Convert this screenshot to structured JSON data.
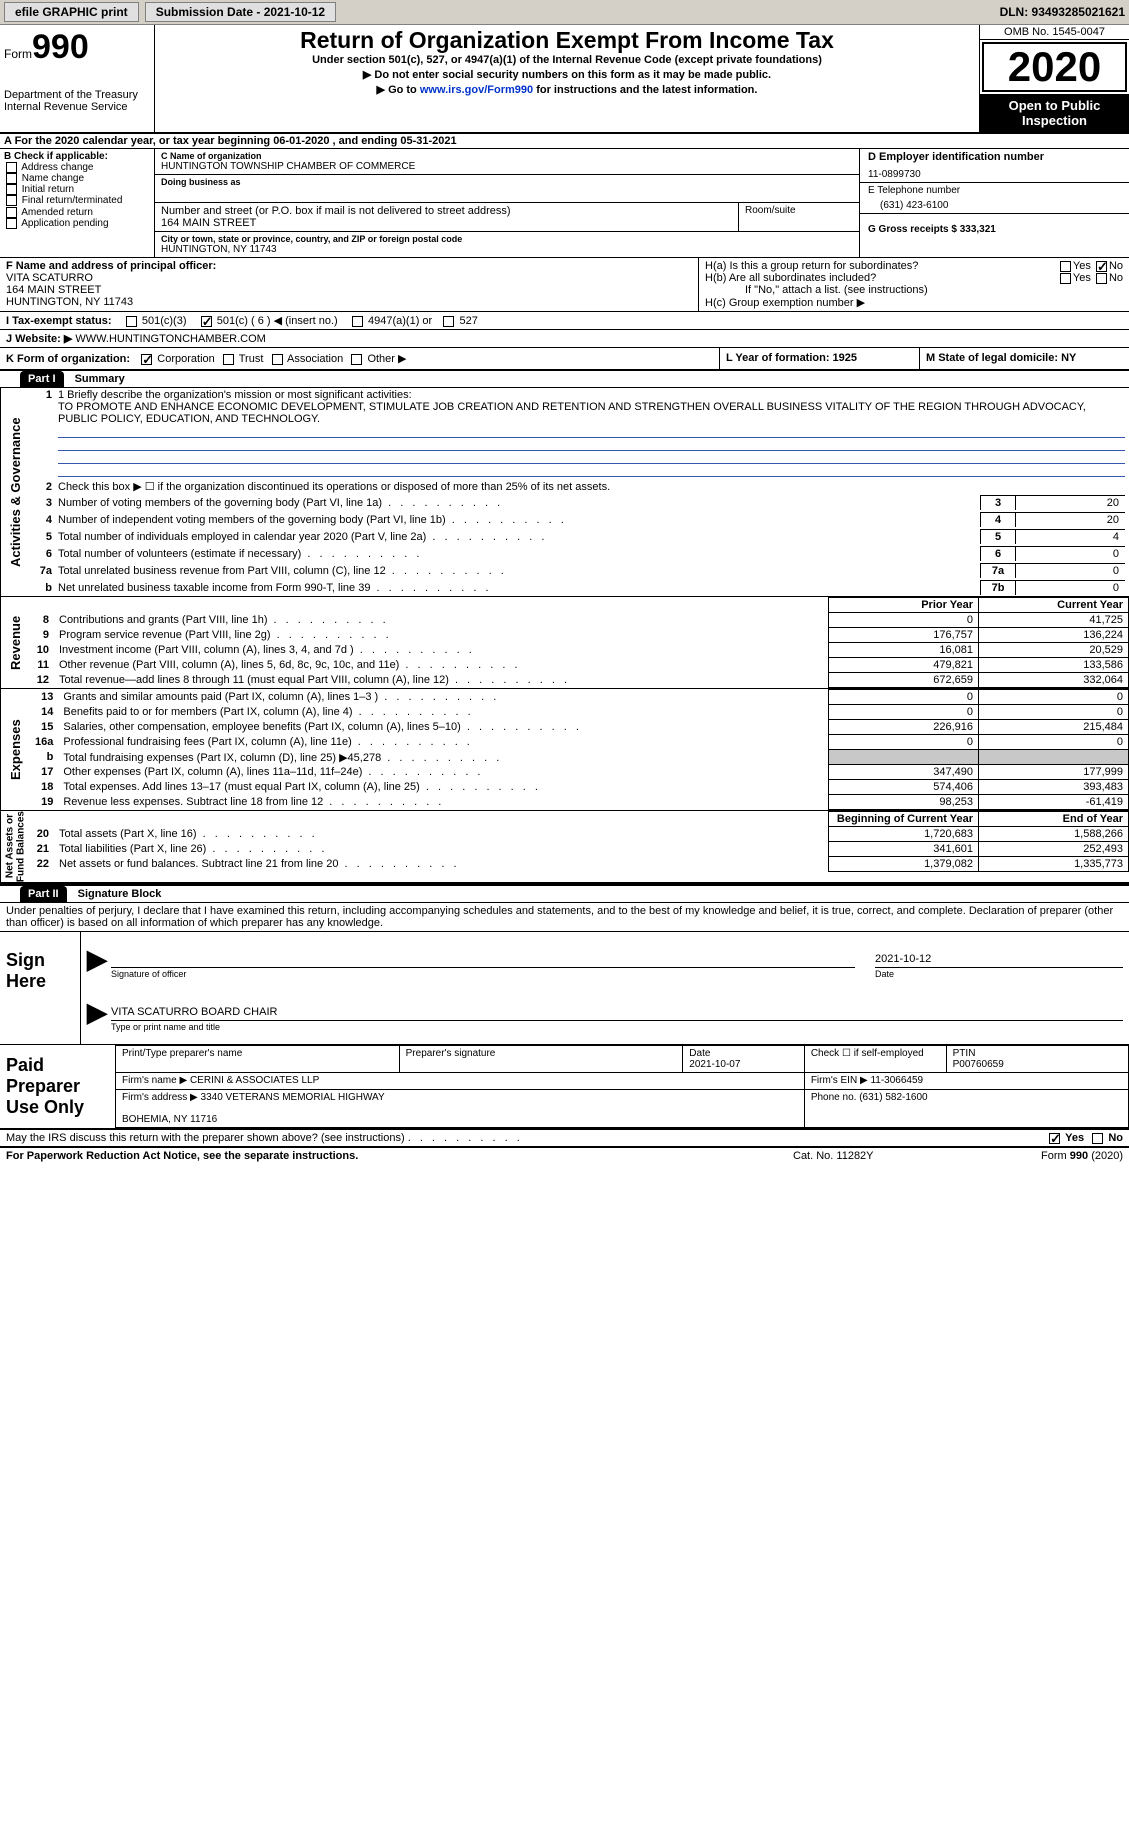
{
  "topbar": {
    "efile_label": "efile GRAPHIC print",
    "submission_label": "Submission Date - 2021-10-12",
    "dln": "DLN: 93493285021621"
  },
  "header": {
    "form_prefix": "Form",
    "form_number": "990",
    "dept": "Department of the Treasury\nInternal Revenue Service",
    "title": "Return of Organization Exempt From Income Tax",
    "subtitle": "Under section 501(c), 527, or 4947(a)(1) of the Internal Revenue Code (except private foundations)",
    "line1": "▶ Do not enter social security numbers on this form as it may be made public.",
    "line2_pre": "▶ Go to ",
    "line2_link": "www.irs.gov/Form990",
    "line2_post": " for instructions and the latest information.",
    "omb": "OMB No. 1545-0047",
    "year": "2020",
    "open_public": "Open to Public\nInspection"
  },
  "lineA": "A For the 2020 calendar year, or tax year beginning 06-01-2020   , and ending 05-31-2021",
  "boxB": {
    "title": "B Check if applicable:",
    "opts": [
      "Address change",
      "Name change",
      "Initial return",
      "Final return/terminated",
      "Amended return",
      "Application pending"
    ]
  },
  "boxC": {
    "name_lbl": "C Name of organization",
    "name": "HUNTINGTON TOWNSHIP CHAMBER OF COMMERCE",
    "dba_lbl": "Doing business as",
    "addr_lbl": "Number and street (or P.O. box if mail is not delivered to street address)",
    "room_lbl": "Room/suite",
    "addr": "164 MAIN STREET",
    "city_lbl": "City or town, state or province, country, and ZIP or foreign postal code",
    "city": "HUNTINGTON, NY  11743"
  },
  "boxD": {
    "ein_lbl": "D Employer identification number",
    "ein": "11-0899730",
    "tel_lbl": "E Telephone number",
    "tel": "(631) 423-6100",
    "gross_lbl": "G Gross receipts $ 333,321"
  },
  "boxF": {
    "lbl": "F Name and address of principal officer:",
    "name": "VITA SCATURRO",
    "addr1": "164 MAIN STREET",
    "addr2": "HUNTINGTON, NY  11743"
  },
  "boxH": {
    "ha": "H(a)  Is this a group return for subordinates?",
    "hb": "H(b)  Are all subordinates included?",
    "hb_note": "If \"No,\" attach a list. (see instructions)",
    "hc": "H(c)  Group exemption number ▶"
  },
  "taxI": {
    "lbl": "I   Tax-exempt status:",
    "opts": [
      "501(c)(3)",
      "501(c) ( 6 ) ◀ (insert no.)",
      "4947(a)(1) or",
      "527"
    ]
  },
  "J": {
    "lbl": "J   Website: ▶",
    "val": " WWW.HUNTINGTONCHAMBER.COM"
  },
  "K": "K Form of organization:",
  "K_opts": [
    "Corporation",
    "Trust",
    "Association",
    "Other ▶"
  ],
  "L": "L Year of formation: 1925",
  "M": "M State of legal domicile: NY",
  "Part1": "Part I",
  "Part1_title": "Summary",
  "governance": {
    "q1_lbl": "1   Briefly describe the organization's mission or most significant activities:",
    "q1_text": "TO PROMOTE AND ENHANCE ECONOMIC DEVELOPMENT, STIMULATE JOB CREATION AND RETENTION AND STRENGTHEN OVERALL BUSINESS VITALITY OF THE REGION THROUGH ADVOCACY, PUBLIC POLICY, EDUCATION, AND TECHNOLOGY.",
    "q2": "Check this box ▶ ☐  if the organization discontinued its operations or disposed of more than 25% of its net assets.",
    "rows": [
      {
        "n": "3",
        "t": "Number of voting members of the governing body (Part VI, line 1a)",
        "box": "3",
        "v": "20"
      },
      {
        "n": "4",
        "t": "Number of independent voting members of the governing body (Part VI, line 1b)",
        "box": "4",
        "v": "20"
      },
      {
        "n": "5",
        "t": "Total number of individuals employed in calendar year 2020 (Part V, line 2a)",
        "box": "5",
        "v": "4"
      },
      {
        "n": "6",
        "t": "Total number of volunteers (estimate if necessary)",
        "box": "6",
        "v": "0"
      },
      {
        "n": "7a",
        "t": "Total unrelated business revenue from Part VIII, column (C), line 12",
        "box": "7a",
        "v": "0"
      },
      {
        "n": "b",
        "t": "Net unrelated business taxable income from Form 990-T, line 39",
        "box": "7b",
        "v": "0"
      }
    ],
    "side": "Activities & Governance"
  },
  "fin_hdr_prior": "Prior Year",
  "fin_hdr_curr": "Current Year",
  "revenue": {
    "side": "Revenue",
    "rows": [
      {
        "n": "8",
        "t": "Contributions and grants (Part VIII, line 1h)",
        "p": "0",
        "c": "41,725"
      },
      {
        "n": "9",
        "t": "Program service revenue (Part VIII, line 2g)",
        "p": "176,757",
        "c": "136,224"
      },
      {
        "n": "10",
        "t": "Investment income (Part VIII, column (A), lines 3, 4, and 7d )",
        "p": "16,081",
        "c": "20,529"
      },
      {
        "n": "11",
        "t": "Other revenue (Part VIII, column (A), lines 5, 6d, 8c, 9c, 10c, and 11e)",
        "p": "479,821",
        "c": "133,586"
      },
      {
        "n": "12",
        "t": "Total revenue—add lines 8 through 11 (must equal Part VIII, column (A), line 12)",
        "p": "672,659",
        "c": "332,064"
      }
    ]
  },
  "expenses": {
    "side": "Expenses",
    "rows": [
      {
        "n": "13",
        "t": "Grants and similar amounts paid (Part IX, column (A), lines 1–3 )",
        "p": "0",
        "c": "0"
      },
      {
        "n": "14",
        "t": "Benefits paid to or for members (Part IX, column (A), line 4)",
        "p": "0",
        "c": "0"
      },
      {
        "n": "15",
        "t": "Salaries, other compensation, employee benefits (Part IX, column (A), lines 5–10)",
        "p": "226,916",
        "c": "215,484"
      },
      {
        "n": "16a",
        "t": "Professional fundraising fees (Part IX, column (A), line 11e)",
        "p": "0",
        "c": "0"
      },
      {
        "n": "b",
        "t": "Total fundraising expenses (Part IX, column (D), line 25) ▶45,278",
        "p": "shade",
        "c": "shade"
      },
      {
        "n": "17",
        "t": "Other expenses (Part IX, column (A), lines 11a–11d, 11f–24e)",
        "p": "347,490",
        "c": "177,999"
      },
      {
        "n": "18",
        "t": "Total expenses. Add lines 13–17 (must equal Part IX, column (A), line 25)",
        "p": "574,406",
        "c": "393,483"
      },
      {
        "n": "19",
        "t": "Revenue less expenses. Subtract line 18 from line 12",
        "p": "98,253",
        "c": "-61,419"
      }
    ]
  },
  "netassets": {
    "side": "Net Assets or\nFund Balances",
    "hdr_b": "Beginning of Current Year",
    "hdr_e": "End of Year",
    "rows": [
      {
        "n": "20",
        "t": "Total assets (Part X, line 16)",
        "p": "1,720,683",
        "c": "1,588,266"
      },
      {
        "n": "21",
        "t": "Total liabilities (Part X, line 26)",
        "p": "341,601",
        "c": "252,493"
      },
      {
        "n": "22",
        "t": "Net assets or fund balances. Subtract line 21 from line 20",
        "p": "1,379,082",
        "c": "1,335,773"
      }
    ]
  },
  "Part2": "Part II",
  "Part2_title": "Signature Block",
  "penalties": "Under penalties of perjury, I declare that I have examined this return, including accompanying schedules and statements, and to the best of my knowledge and belief, it is true, correct, and complete. Declaration of preparer (other than officer) is based on all information of which preparer has any knowledge.",
  "sign": {
    "label": "Sign\nHere",
    "sig_of_officer": "Signature of officer",
    "date_lbl": "Date",
    "date_val": "2021-10-12",
    "name": "VITA SCATURRO  BOARD CHAIR",
    "name_lbl": "Type or print name and title"
  },
  "prep": {
    "label": "Paid\nPreparer\nUse Only",
    "h1": "Print/Type preparer's name",
    "h2": "Preparer's signature",
    "h3_lbl": "Date",
    "h3": "2021-10-07",
    "h4": "Check ☐ if self-employed",
    "h5_lbl": "PTIN",
    "h5": "P00760659",
    "firm_name_lbl": "Firm's name    ▶",
    "firm_name": "CERINI & ASSOCIATES LLP",
    "firm_ein_lbl": "Firm's EIN ▶",
    "firm_ein": "11-3066459",
    "firm_addr_lbl": "Firm's address ▶",
    "firm_addr": "3340 VETERANS MEMORIAL HIGHWAY\n\nBOHEMIA, NY  11716",
    "phone_lbl": "Phone no.",
    "phone": "(631) 582-1600"
  },
  "may_irs": "May the IRS discuss this return with the preparer shown above? (see instructions)",
  "footer": {
    "l": "For Paperwork Reduction Act Notice, see the separate instructions.",
    "m": "Cat. No. 11282Y",
    "r": "Form 990 (2020)"
  }
}
